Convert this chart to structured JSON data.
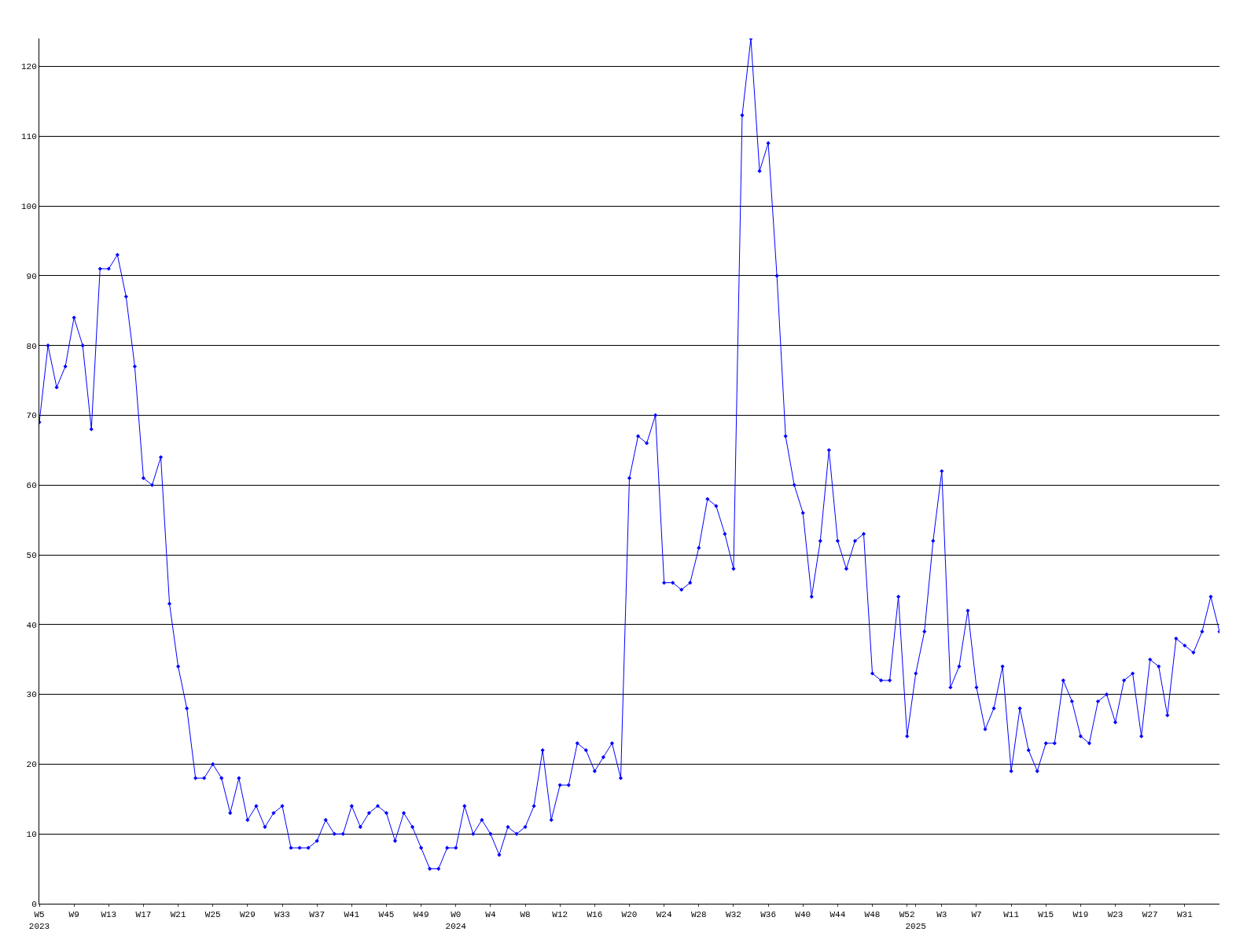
{
  "chart_data": {
    "type": "line",
    "categories": [
      "W5\n2023",
      null,
      null,
      null,
      "W9",
      null,
      null,
      null,
      "W13",
      null,
      null,
      null,
      "W17",
      null,
      null,
      null,
      "W21",
      null,
      null,
      null,
      "W25",
      null,
      null,
      null,
      "W29",
      null,
      null,
      null,
      "W33",
      null,
      null,
      null,
      "W37",
      null,
      null,
      null,
      "W41",
      null,
      null,
      null,
      "W45",
      null,
      null,
      null,
      "W49",
      null,
      null,
      null,
      "W0\n2024",
      null,
      null,
      null,
      "W4",
      null,
      null,
      null,
      "W8",
      null,
      null,
      null,
      "W12",
      null,
      null,
      null,
      "W16",
      null,
      null,
      null,
      "W20",
      null,
      null,
      null,
      "W24",
      null,
      null,
      null,
      "W28",
      null,
      null,
      null,
      "W32",
      null,
      null,
      null,
      "W36",
      null,
      null,
      null,
      "W40",
      null,
      null,
      null,
      "W44",
      null,
      null,
      null,
      "W48",
      null,
      null,
      null,
      "W52",
      "\n2025",
      null,
      null,
      "W3",
      null,
      null,
      null,
      "W7",
      null,
      null,
      null,
      "W11",
      null,
      null,
      null,
      "W15",
      null,
      null,
      null,
      "W19",
      null,
      null,
      null,
      "W23",
      null,
      null,
      null,
      "W27",
      null,
      null,
      null,
      "W31",
      null,
      null,
      null,
      null
    ],
    "series": [
      {
        "color": "#0000ff",
        "values": [
          69,
          80,
          74,
          77,
          84,
          80,
          68,
          91,
          91,
          93,
          87,
          77,
          61,
          60,
          64,
          43,
          34,
          28,
          18,
          18,
          20,
          18,
          13,
          18,
          12,
          14,
          11,
          13,
          14,
          8,
          8,
          8,
          9,
          12,
          10,
          10,
          14,
          11,
          13,
          14,
          13,
          9,
          13,
          11,
          8,
          5,
          5,
          8,
          8,
          14,
          10,
          12,
          10,
          7,
          11,
          10,
          11,
          14,
          22,
          12,
          17,
          17,
          23,
          22,
          19,
          21,
          23,
          18,
          61,
          67,
          66,
          70,
          46,
          46,
          45,
          46,
          51,
          58,
          57,
          53,
          48,
          113,
          124,
          105,
          109,
          90,
          67,
          60,
          56,
          44,
          52,
          65,
          52,
          48,
          52,
          53,
          33,
          32,
          32,
          44,
          24,
          33,
          39,
          52,
          62,
          31,
          34,
          42,
          31,
          25,
          28,
          34,
          19,
          28,
          22,
          19,
          23,
          23,
          32,
          29,
          24,
          23,
          29,
          30,
          26,
          32,
          33,
          24,
          35,
          34,
          27,
          38,
          37,
          36,
          39,
          44,
          39
        ]
      }
    ],
    "ylim": [
      0,
      124
    ],
    "yticks": [
      0,
      10,
      20,
      30,
      40,
      50,
      60,
      70,
      80,
      90,
      100,
      110,
      120
    ],
    "grid": "y",
    "marker": "diamond",
    "line_style": "solid"
  }
}
